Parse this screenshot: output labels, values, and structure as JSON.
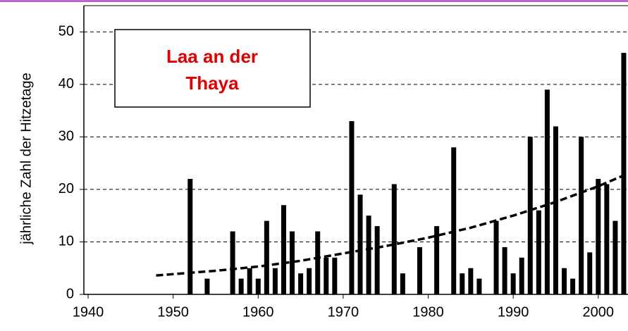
{
  "chart_data": {
    "type": "bar",
    "title_lines": [
      "Laa an der",
      "Thaya"
    ],
    "ylabel": "jährliche Zahl der Hitzetage",
    "x": [
      1952,
      1954,
      1957,
      1958,
      1959,
      1960,
      1961,
      1962,
      1963,
      1964,
      1965,
      1966,
      1967,
      1968,
      1969,
      1971,
      1972,
      1973,
      1974,
      1976,
      1977,
      1979,
      1981,
      1983,
      1984,
      1985,
      1986,
      1988,
      1989,
      1990,
      1991,
      1992,
      1993,
      1994,
      1995,
      1996,
      1997,
      1998,
      1999,
      2000,
      2001,
      2002,
      2003
    ],
    "values": [
      22,
      3,
      12,
      3,
      5,
      3,
      14,
      5,
      17,
      12,
      4,
      5,
      12,
      7,
      7,
      33,
      19,
      15,
      13,
      21,
      4,
      9,
      13,
      28,
      4,
      5,
      3,
      14,
      9,
      4,
      7,
      30,
      16,
      39,
      32,
      5,
      3,
      30,
      8,
      22,
      21,
      14,
      46
    ],
    "color": "#000000",
    "trendline": {
      "x": [
        1948,
        1955,
        1960,
        1965,
        1970,
        1975,
        1980,
        1985,
        1990,
        1995,
        2000,
        2003.5
      ],
      "values": [
        3.6,
        4.5,
        5.3,
        6.4,
        7.8,
        9.2,
        10.8,
        12.7,
        15,
        17.6,
        20.6,
        23
      ],
      "color": "#000000"
    },
    "xlim": [
      1939.5,
      2003.5
    ],
    "xticks": [
      1940,
      1950,
      1960,
      1970,
      1980,
      1990,
      2000
    ],
    "ylim": [
      0,
      55
    ],
    "yticks": [
      0,
      10,
      20,
      30,
      40,
      50
    ],
    "grid": true
  }
}
